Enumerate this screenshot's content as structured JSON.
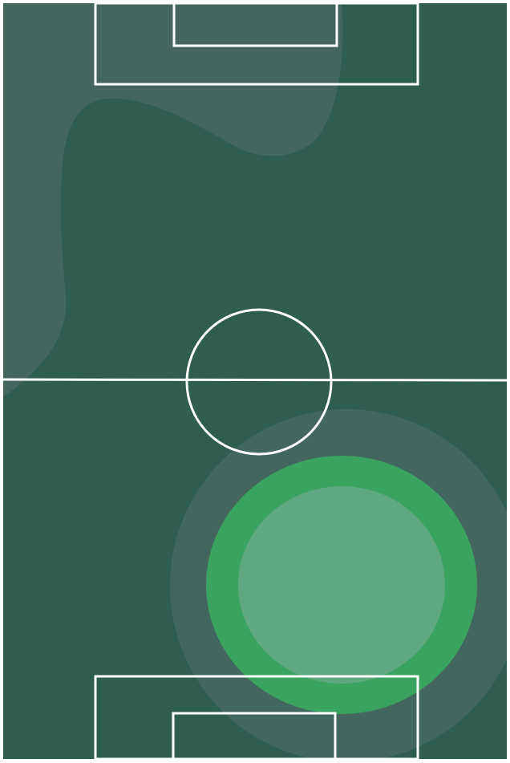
{
  "pitch": {
    "colors": {
      "turf": "#2f5e51",
      "line": "#ffffff",
      "zone_soft": "#45665f",
      "zone_ring": "#43675f",
      "zone_core": "#3aa35f",
      "zone_center": "#5ea97f"
    }
  }
}
